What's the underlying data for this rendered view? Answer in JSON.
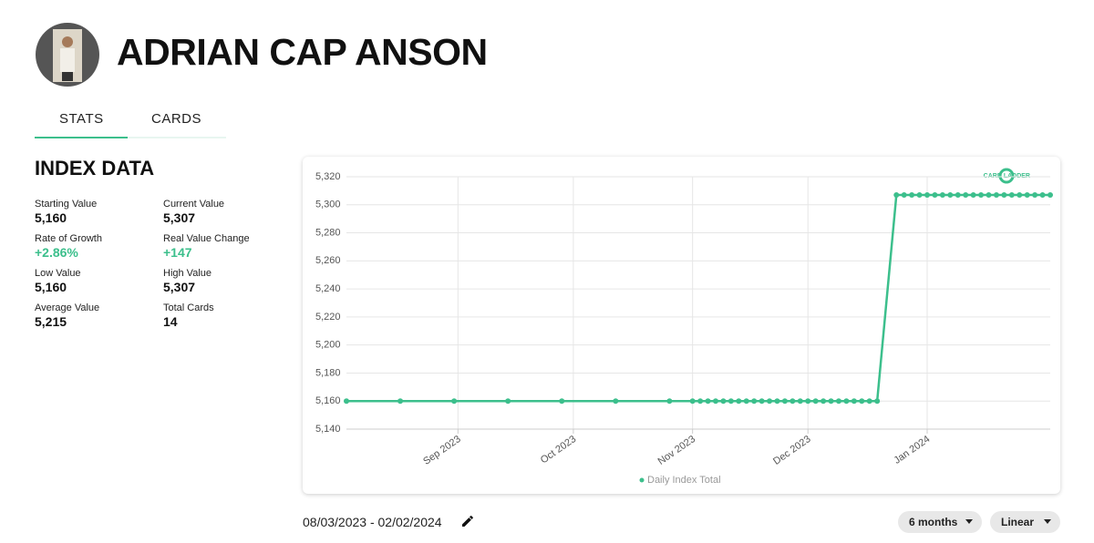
{
  "header": {
    "name": "ADRIAN CAP ANSON"
  },
  "tabs": [
    "STATS",
    "CARDS"
  ],
  "index_data": {
    "title": "INDEX DATA",
    "stats": [
      {
        "label": "Starting Value",
        "value": "5,160"
      },
      {
        "label": "Current Value",
        "value": "5,307"
      },
      {
        "label": "Rate of Growth",
        "value": "+2.86%"
      },
      {
        "label": "Real Value Change",
        "value": "+147"
      },
      {
        "label": "Low Value",
        "value": "5,160"
      },
      {
        "label": "High Value",
        "value": "5,307"
      },
      {
        "label": "Average Value",
        "value": "5,215"
      },
      {
        "label": "Total Cards",
        "value": "14"
      }
    ]
  },
  "chart_logo": "CARD LADDER",
  "chart_data": {
    "type": "line",
    "x": [
      "2023-08-03",
      "2023-08-17",
      "2023-08-31",
      "2023-09-14",
      "2023-09-28",
      "2023-10-12",
      "2023-10-26",
      "2023-11-01",
      "2023-11-03",
      "2023-11-05",
      "2023-11-07",
      "2023-11-09",
      "2023-11-11",
      "2023-11-13",
      "2023-11-15",
      "2023-11-17",
      "2023-11-19",
      "2023-11-21",
      "2023-11-23",
      "2023-11-25",
      "2023-11-27",
      "2023-11-29",
      "2023-12-01",
      "2023-12-03",
      "2023-12-05",
      "2023-12-07",
      "2023-12-09",
      "2023-12-11",
      "2023-12-13",
      "2023-12-15",
      "2023-12-17",
      "2023-12-19",
      "2023-12-24",
      "2023-12-26",
      "2023-12-28",
      "2023-12-30",
      "2024-01-01",
      "2024-01-03",
      "2024-01-05",
      "2024-01-07",
      "2024-01-09",
      "2024-01-11",
      "2024-01-13",
      "2024-01-15",
      "2024-01-17",
      "2024-01-19",
      "2024-01-21",
      "2024-01-23",
      "2024-01-25",
      "2024-01-27",
      "2024-01-29",
      "2024-01-31",
      "2024-02-02"
    ],
    "series": [
      {
        "name": "Daily Index Total",
        "color": "#3cbf8c",
        "values": [
          5160,
          5160,
          5160,
          5160,
          5160,
          5160,
          5160,
          5160,
          5160,
          5160,
          5160,
          5160,
          5160,
          5160,
          5160,
          5160,
          5160,
          5160,
          5160,
          5160,
          5160,
          5160,
          5160,
          5160,
          5160,
          5160,
          5160,
          5160,
          5160,
          5160,
          5160,
          5160,
          5307,
          5307,
          5307,
          5307,
          5307,
          5307,
          5307,
          5307,
          5307,
          5307,
          5307,
          5307,
          5307,
          5307,
          5307,
          5307,
          5307,
          5307,
          5307,
          5307,
          5307
        ]
      }
    ],
    "xlim": [
      "2023-08-03",
      "2024-02-02"
    ],
    "xticks": [
      {
        "value": "2023-09-01",
        "label": "Sep 2023"
      },
      {
        "value": "2023-10-01",
        "label": "Oct 2023"
      },
      {
        "value": "2023-11-01",
        "label": "Nov 2023"
      },
      {
        "value": "2023-12-01",
        "label": "Dec 2023"
      },
      {
        "value": "2024-01-01",
        "label": "Jan 2024"
      }
    ],
    "ylim": [
      5140,
      5320
    ],
    "yticks": [
      {
        "value": 5140,
        "label": "5,140"
      },
      {
        "value": 5160,
        "label": "5,160"
      },
      {
        "value": 5180,
        "label": "5,180"
      },
      {
        "value": 5200,
        "label": "5,200"
      },
      {
        "value": 5220,
        "label": "5,220"
      },
      {
        "value": 5240,
        "label": "5,240"
      },
      {
        "value": 5260,
        "label": "5,260"
      },
      {
        "value": 5280,
        "label": "5,280"
      },
      {
        "value": 5300,
        "label": "5,300"
      },
      {
        "value": 5320,
        "label": "5,320"
      }
    ],
    "grid": true,
    "legend": "bottom"
  },
  "footer": {
    "date_range": "08/03/2023 - 02/02/2024",
    "controls": [
      "6 months",
      "Linear"
    ]
  }
}
